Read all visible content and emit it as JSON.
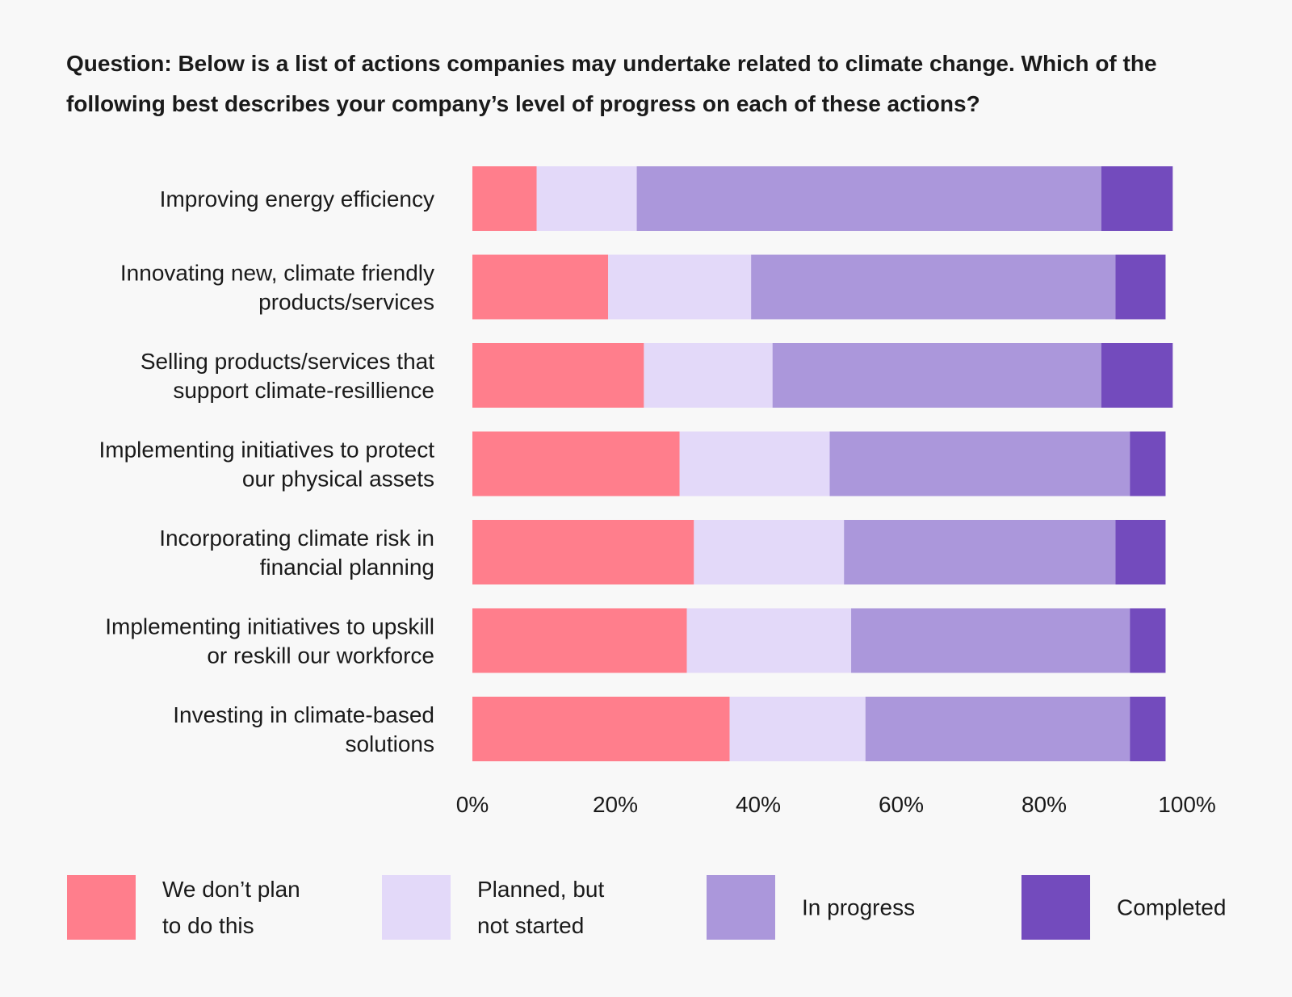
{
  "question": "Question: Below is a list of actions companies may undertake related to climate change. Which of the following best describes your company’s level of progress on each of these actions?",
  "chart_data": {
    "type": "bar",
    "orientation": "horizontal",
    "stacked": true,
    "categories": [
      [
        "Improving energy efficiency"
      ],
      [
        "Innovating new, climate friendly",
        "products/services"
      ],
      [
        "Selling products/services that",
        "support climate-resillience"
      ],
      [
        "Implementing initiatives to protect",
        "our physical assets"
      ],
      [
        "Incorporating climate risk in",
        "financial planning"
      ],
      [
        "Implementing initiatives to upskill",
        "or reskill our workforce"
      ],
      [
        "Investing in climate-based",
        "solutions"
      ]
    ],
    "series": [
      {
        "name": "We don’t plan\nto do this",
        "color": "#ff7e8c",
        "values": [
          9,
          19,
          24,
          29,
          31,
          30,
          36
        ]
      },
      {
        "name": "Planned, but\nnot started",
        "color": "#e3d9f9",
        "values": [
          14,
          20,
          18,
          21,
          21,
          23,
          19
        ]
      },
      {
        "name": "In progress",
        "color": "#ab97db",
        "values": [
          65,
          51,
          46,
          42,
          38,
          39,
          37
        ]
      },
      {
        "name": "Completed",
        "color": "#734bbd",
        "values": [
          10,
          7,
          10,
          5,
          7,
          5,
          5
        ]
      }
    ],
    "xticks": [
      "0%",
      "20%",
      "40%",
      "60%",
      "80%",
      "100%"
    ],
    "xlim": [
      0,
      100
    ],
    "legend_position": "bottom"
  }
}
